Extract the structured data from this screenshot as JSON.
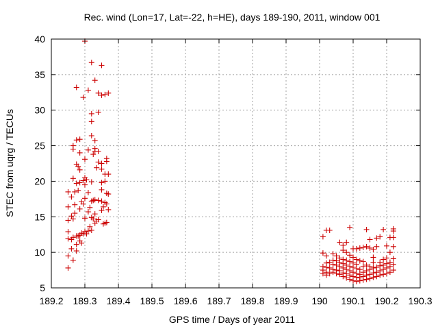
{
  "chart_data": {
    "type": "scatter",
    "title": "Rec. wind (Lon=17, Lat=-22, h=HE), days 189-190, 2011, window 001",
    "xlabel": "GPS time / Days of year 2011",
    "ylabel": "STEC from uqrg / TECUs",
    "xlim": [
      189.2,
      190.3
    ],
    "ylim": [
      5,
      40
    ],
    "xticks": [
      189.2,
      189.3,
      189.4,
      189.5,
      189.6,
      189.7,
      189.8,
      189.9,
      190,
      190.1,
      190.2,
      190.3
    ],
    "xtick_labels": [
      "189.2",
      "189.3",
      "189.4",
      "189.5",
      "189.6",
      "189.7",
      "189.8",
      "189.9",
      "190",
      "190.1",
      "190.2",
      "190.3"
    ],
    "yticks": [
      5,
      10,
      15,
      20,
      25,
      30,
      35,
      40
    ],
    "ytick_labels": [
      "5",
      "10",
      "15",
      "20",
      "25",
      "30",
      "35",
      "40"
    ],
    "grid": true,
    "legend": "none",
    "marker": "plus",
    "color": "#cc0000",
    "points": [
      [
        189.25,
        7.8
      ],
      [
        189.25,
        9.5
      ],
      [
        189.25,
        11.9
      ],
      [
        189.25,
        12.9
      ],
      [
        189.25,
        14.5
      ],
      [
        189.25,
        16.4
      ],
      [
        189.25,
        18.5
      ],
      [
        189.26,
        10.5
      ],
      [
        189.26,
        11.8
      ],
      [
        189.26,
        15.1
      ],
      [
        189.26,
        17.8
      ],
      [
        189.265,
        8.9
      ],
      [
        189.265,
        12.1
      ],
      [
        189.265,
        14.7
      ],
      [
        189.265,
        20.4
      ],
      [
        189.265,
        24.5
      ],
      [
        189.265,
        25.0
      ],
      [
        189.27,
        15.5
      ],
      [
        189.27,
        16.7
      ],
      [
        189.27,
        18.5
      ],
      [
        189.275,
        10.2
      ],
      [
        189.275,
        11.1
      ],
      [
        189.275,
        12.3
      ],
      [
        189.275,
        19.7
      ],
      [
        189.275,
        22.4
      ],
      [
        189.275,
        25.8
      ],
      [
        189.275,
        33.2
      ],
      [
        189.28,
        12.3
      ],
      [
        189.28,
        18.7
      ],
      [
        189.28,
        22.1
      ],
      [
        189.285,
        11.6
      ],
      [
        189.285,
        12.4
      ],
      [
        189.285,
        16.1
      ],
      [
        189.285,
        19.8
      ],
      [
        189.285,
        21.6
      ],
      [
        189.285,
        24.0
      ],
      [
        189.285,
        25.9
      ],
      [
        189.29,
        11.3
      ],
      [
        189.29,
        12.7
      ],
      [
        189.29,
        17.1
      ],
      [
        189.295,
        12.6
      ],
      [
        189.295,
        16.8
      ],
      [
        189.295,
        20.1
      ],
      [
        189.295,
        31.8
      ],
      [
        189.3,
        12.9
      ],
      [
        189.3,
        14.8
      ],
      [
        189.3,
        17.6
      ],
      [
        189.3,
        19.5
      ],
      [
        189.3,
        20.5
      ],
      [
        189.3,
        23.1
      ],
      [
        189.3,
        39.7
      ],
      [
        189.305,
        12.6
      ],
      [
        189.305,
        20.2
      ],
      [
        189.31,
        13.0
      ],
      [
        189.31,
        15.7
      ],
      [
        189.31,
        18.4
      ],
      [
        189.31,
        24.4
      ],
      [
        189.31,
        32.8
      ],
      [
        189.315,
        13.6
      ],
      [
        189.315,
        16.3
      ],
      [
        189.32,
        13.1
      ],
      [
        189.32,
        14.9
      ],
      [
        189.32,
        17.2
      ],
      [
        189.32,
        19.9
      ],
      [
        189.32,
        26.4
      ],
      [
        189.32,
        28.4
      ],
      [
        189.32,
        29.5
      ],
      [
        189.32,
        36.7
      ],
      [
        189.325,
        14.7
      ],
      [
        189.325,
        17.3
      ],
      [
        189.325,
        23.8
      ],
      [
        189.33,
        14.1
      ],
      [
        189.33,
        15.4
      ],
      [
        189.33,
        17.4
      ],
      [
        189.33,
        24.2
      ],
      [
        189.33,
        24.6
      ],
      [
        189.33,
        25.7
      ],
      [
        189.33,
        34.2
      ],
      [
        189.335,
        14.4
      ],
      [
        189.335,
        21.9
      ],
      [
        189.34,
        14.6
      ],
      [
        189.34,
        17.3
      ],
      [
        189.34,
        22.7
      ],
      [
        189.34,
        24.2
      ],
      [
        189.34,
        29.7
      ],
      [
        189.34,
        32.4
      ],
      [
        189.35,
        15.9
      ],
      [
        189.35,
        17.2
      ],
      [
        189.35,
        18.8
      ],
      [
        189.35,
        19.8
      ],
      [
        189.35,
        21.7
      ],
      [
        189.35,
        22.5
      ],
      [
        189.35,
        32.1
      ],
      [
        189.35,
        36.3
      ],
      [
        189.355,
        14.0
      ],
      [
        189.355,
        16.4
      ],
      [
        189.36,
        14.1
      ],
      [
        189.36,
        17.0
      ],
      [
        189.36,
        20.0
      ],
      [
        189.36,
        21.0
      ],
      [
        189.36,
        32.2
      ],
      [
        189.365,
        14.2
      ],
      [
        189.365,
        16.8
      ],
      [
        189.365,
        18.3
      ],
      [
        189.365,
        22.8
      ],
      [
        189.365,
        23.2
      ],
      [
        189.37,
        16.0
      ],
      [
        189.37,
        18.2
      ],
      [
        189.37,
        21.0
      ],
      [
        189.37,
        32.4
      ],
      [
        190.01,
        8.0
      ],
      [
        190.01,
        9.9
      ],
      [
        190.01,
        12.2
      ],
      [
        190.01,
        7.0
      ],
      [
        190.01,
        7.5
      ],
      [
        190.02,
        6.8
      ],
      [
        190.02,
        7.2
      ],
      [
        190.02,
        7.9
      ],
      [
        190.02,
        8.5
      ],
      [
        190.02,
        9.5
      ],
      [
        190.02,
        13.1
      ],
      [
        190.03,
        7.0
      ],
      [
        190.03,
        7.8
      ],
      [
        190.03,
        8.6
      ],
      [
        190.03,
        13.1
      ],
      [
        190.04,
        7.2
      ],
      [
        190.04,
        7.6
      ],
      [
        190.04,
        8.3
      ],
      [
        190.04,
        8.9
      ],
      [
        190.04,
        9.8
      ],
      [
        190.05,
        7.0
      ],
      [
        190.05,
        7.5
      ],
      [
        190.05,
        8.2
      ],
      [
        190.05,
        8.8
      ],
      [
        190.05,
        9.5
      ],
      [
        190.06,
        6.9
      ],
      [
        190.06,
        7.4
      ],
      [
        190.06,
        8.0
      ],
      [
        190.06,
        8.6
      ],
      [
        190.06,
        9.2
      ],
      [
        190.06,
        11.4
      ],
      [
        190.07,
        6.6
      ],
      [
        190.07,
        7.1
      ],
      [
        190.07,
        7.8
      ],
      [
        190.07,
        8.4
      ],
      [
        190.07,
        9.0
      ],
      [
        190.07,
        10.3
      ],
      [
        190.07,
        11.0
      ],
      [
        190.08,
        6.4
      ],
      [
        190.08,
        7.0
      ],
      [
        190.08,
        7.6
      ],
      [
        190.08,
        8.2
      ],
      [
        190.08,
        8.9
      ],
      [
        190.08,
        10.0
      ],
      [
        190.08,
        11.4
      ],
      [
        190.09,
        6.2
      ],
      [
        190.09,
        6.8
      ],
      [
        190.09,
        7.4
      ],
      [
        190.09,
        8.0
      ],
      [
        190.09,
        8.7
      ],
      [
        190.09,
        9.6
      ],
      [
        190.09,
        13.5
      ],
      [
        190.1,
        6.0
      ],
      [
        190.1,
        6.6
      ],
      [
        190.1,
        7.2
      ],
      [
        190.1,
        7.9
      ],
      [
        190.1,
        8.5
      ],
      [
        190.1,
        9.3
      ],
      [
        190.1,
        10.5
      ],
      [
        190.11,
        5.9
      ],
      [
        190.11,
        6.5
      ],
      [
        190.11,
        7.0
      ],
      [
        190.11,
        7.7
      ],
      [
        190.11,
        8.3
      ],
      [
        190.11,
        9.0
      ],
      [
        190.11,
        10.5
      ],
      [
        190.12,
        6.0
      ],
      [
        190.12,
        6.4
      ],
      [
        190.12,
        6.9
      ],
      [
        190.12,
        7.6
      ],
      [
        190.12,
        8.8
      ],
      [
        190.12,
        10.6
      ],
      [
        190.13,
        6.1
      ],
      [
        190.13,
        6.6
      ],
      [
        190.13,
        7.2
      ],
      [
        190.13,
        8.0
      ],
      [
        190.13,
        8.7
      ],
      [
        190.13,
        10.7
      ],
      [
        190.14,
        6.2
      ],
      [
        190.14,
        6.8
      ],
      [
        190.14,
        7.4
      ],
      [
        190.14,
        8.2
      ],
      [
        190.14,
        10.8
      ],
      [
        190.14,
        13.2
      ],
      [
        190.15,
        6.3
      ],
      [
        190.15,
        6.9
      ],
      [
        190.15,
        7.6
      ],
      [
        190.15,
        8.0
      ],
      [
        190.15,
        10.6
      ],
      [
        190.15,
        11.8
      ],
      [
        190.16,
        6.5
      ],
      [
        190.16,
        7.1
      ],
      [
        190.16,
        7.8
      ],
      [
        190.16,
        8.6
      ],
      [
        190.16,
        9.3
      ],
      [
        190.16,
        10.4
      ],
      [
        190.17,
        6.6
      ],
      [
        190.17,
        7.2
      ],
      [
        190.17,
        7.9
      ],
      [
        190.17,
        10.8
      ],
      [
        190.17,
        12.0
      ],
      [
        190.18,
        6.8
      ],
      [
        190.18,
        7.4
      ],
      [
        190.18,
        8.1
      ],
      [
        190.18,
        8.6
      ],
      [
        190.18,
        12.2
      ],
      [
        190.19,
        6.9
      ],
      [
        190.19,
        7.6
      ],
      [
        190.19,
        8.2
      ],
      [
        190.19,
        9.0
      ],
      [
        190.19,
        13.2
      ],
      [
        190.2,
        7.0
      ],
      [
        190.2,
        7.8
      ],
      [
        190.2,
        8.4
      ],
      [
        190.2,
        9.2
      ],
      [
        190.2,
        10.9
      ],
      [
        190.21,
        7.2
      ],
      [
        190.21,
        8.0
      ],
      [
        190.21,
        8.6
      ],
      [
        190.21,
        10.0
      ],
      [
        190.21,
        12.1
      ],
      [
        190.22,
        7.5
      ],
      [
        190.22,
        8.3
      ],
      [
        190.22,
        9.1
      ],
      [
        190.22,
        10.8
      ],
      [
        190.22,
        12.1
      ],
      [
        190.22,
        13.0
      ],
      [
        190.22,
        13.3
      ]
    ]
  }
}
